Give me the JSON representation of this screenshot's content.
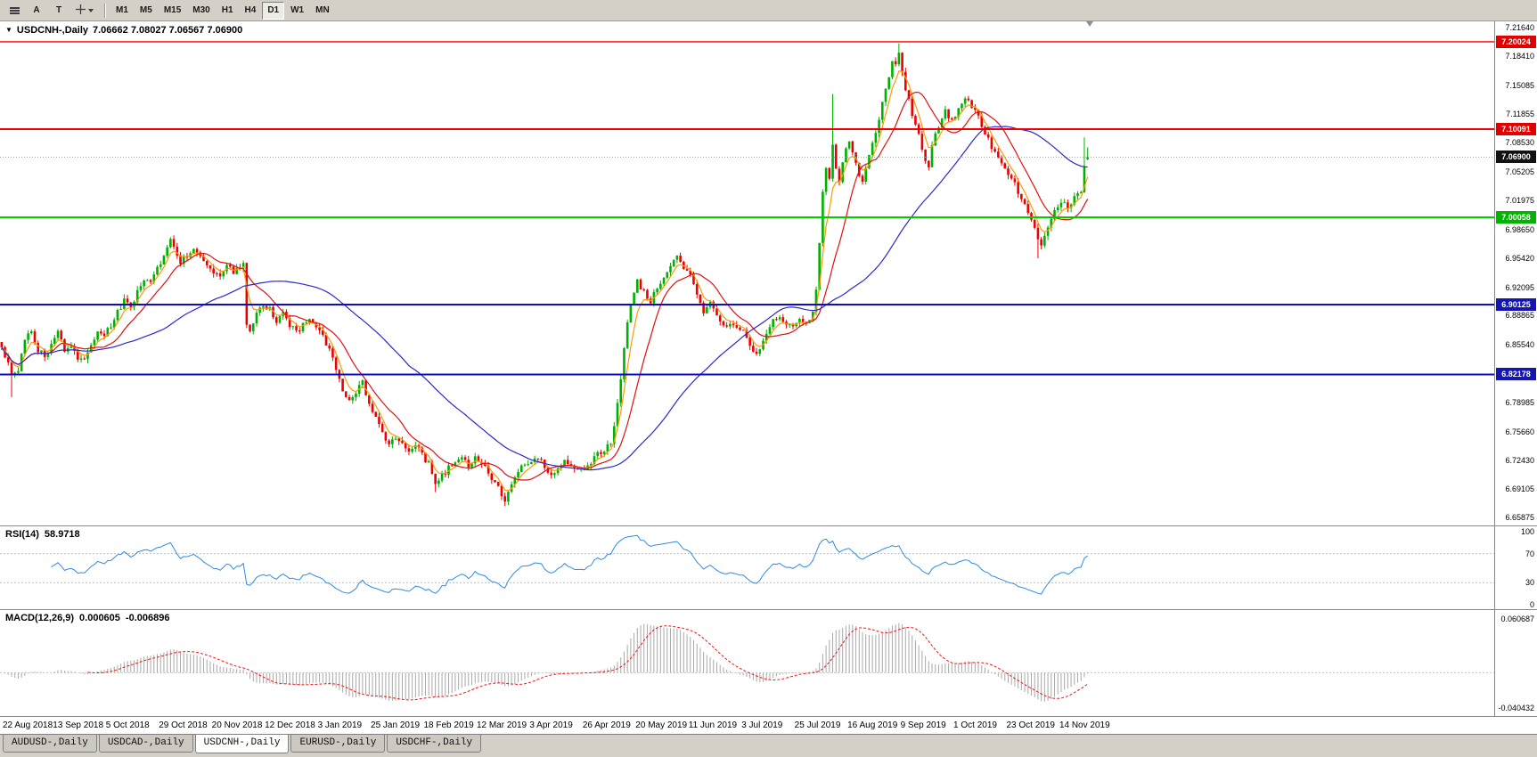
{
  "toolbar": {
    "timeframes": [
      "M1",
      "M5",
      "M15",
      "M30",
      "H1",
      "H4",
      "D1",
      "W1",
      "MN"
    ],
    "active_timeframe": "D1",
    "tools": {
      "cursor_label": "A",
      "text_label": "T"
    }
  },
  "chart": {
    "dropdown_glyph": "▼",
    "title": "USDCNH-,Daily",
    "ohlc": "7.06662 7.08027 7.06567 7.06900"
  },
  "tabs": {
    "items": [
      "AUDUSD-,Daily",
      "USDCAD-,Daily",
      "USDCNH-,Daily",
      "EURUSD-,Daily",
      "USDCHF-,Daily"
    ],
    "active": "USDCNH-,Daily"
  },
  "chart_data": {
    "type": "candlestick",
    "symbol": "USDCNH-",
    "period": "Daily",
    "ohlc_readout": {
      "open": "7.06662",
      "high": "7.08027",
      "low": "7.06567",
      "close": "7.06900"
    },
    "bar_count": 329,
    "bar_area_fraction": 0.729,
    "price_scale": {
      "top": 7.2235,
      "bottom": 6.65
    },
    "price_axis_labels": [
      "7.21640",
      "7.18410",
      "7.15085",
      "7.11855",
      "7.08530",
      "7.05205",
      "7.01975",
      "6.98650",
      "6.95420",
      "6.92095",
      "6.88865",
      "6.85540",
      "6.82215",
      "6.78985",
      "6.75660",
      "6.72430",
      "6.69105",
      "6.65875"
    ],
    "colors": {
      "up": "#00b000",
      "down": "#ee0000"
    },
    "moving_averages": [
      {
        "period": 5,
        "method": "ema",
        "color": "#ff9900"
      },
      {
        "period": 13,
        "method": "sma",
        "color": "#e01010"
      },
      {
        "period": 50,
        "method": "sma",
        "color": "#2828d0"
      }
    ],
    "hlines": [
      {
        "price": 7.20024,
        "label": "7.20024",
        "color": "#f40000",
        "badge": "#e00000",
        "width": 1.3,
        "dash": ""
      },
      {
        "price": 7.10091,
        "label": "7.10091",
        "color": "#f40000",
        "badge": "#e00000",
        "width": 2,
        "dash": ""
      },
      {
        "price": 7.069,
        "label": "7.06900",
        "color": "#a8a8a8",
        "badge": "#111111",
        "width": 1,
        "dash": "1,2"
      },
      {
        "price": 7.00058,
        "label": "7.00058",
        "color": "#00cc00",
        "badge": "#00b400",
        "width": 2,
        "dash": ""
      },
      {
        "price": 6.90125,
        "label": "6.90125",
        "color": "#0d0dc9",
        "badge": "#1515b4",
        "width": 2,
        "dash": ""
      },
      {
        "price": 6.82178,
        "label": "6.82178",
        "color": "#0d0dc9",
        "badge": "#1515b4",
        "width": 2,
        "dash": ""
      }
    ],
    "close_anchors": [
      [
        0,
        6.852
      ],
      [
        2,
        6.836
      ],
      [
        3,
        6.82
      ],
      [
        5,
        6.828
      ],
      [
        7,
        6.862
      ],
      [
        9,
        6.872
      ],
      [
        11,
        6.85
      ],
      [
        13,
        6.843
      ],
      [
        15,
        6.856
      ],
      [
        17,
        6.87
      ],
      [
        19,
        6.848
      ],
      [
        21,
        6.856
      ],
      [
        23,
        6.84
      ],
      [
        25,
        6.838
      ],
      [
        27,
        6.858
      ],
      [
        29,
        6.87
      ],
      [
        31,
        6.866
      ],
      [
        33,
        6.878
      ],
      [
        35,
        6.892
      ],
      [
        37,
        6.905
      ],
      [
        39,
        6.896
      ],
      [
        41,
        6.918
      ],
      [
        43,
        6.93
      ],
      [
        45,
        6.924
      ],
      [
        47,
        6.942
      ],
      [
        49,
        6.958
      ],
      [
        51,
        6.976
      ],
      [
        52,
        6.968
      ],
      [
        54,
        6.95
      ],
      [
        56,
        6.958
      ],
      [
        58,
        6.965
      ],
      [
        60,
        6.955
      ],
      [
        62,
        6.946
      ],
      [
        64,
        6.94
      ],
      [
        66,
        6.935
      ],
      [
        68,
        6.945
      ],
      [
        70,
        6.938
      ],
      [
        72,
        6.944
      ],
      [
        73,
        6.95
      ],
      [
        74,
        6.88
      ],
      [
        75,
        6.868
      ],
      [
        77,
        6.89
      ],
      [
        79,
        6.9
      ],
      [
        81,
        6.895
      ],
      [
        83,
        6.884
      ],
      [
        85,
        6.89
      ],
      [
        87,
        6.878
      ],
      [
        89,
        6.87
      ],
      [
        91,
        6.877
      ],
      [
        93,
        6.884
      ],
      [
        95,
        6.876
      ],
      [
        97,
        6.866
      ],
      [
        99,
        6.85
      ],
      [
        101,
        6.826
      ],
      [
        103,
        6.806
      ],
      [
        105,
        6.792
      ],
      [
        107,
        6.803
      ],
      [
        109,
        6.812
      ],
      [
        111,
        6.79
      ],
      [
        113,
        6.775
      ],
      [
        115,
        6.758
      ],
      [
        117,
        6.742
      ],
      [
        119,
        6.752
      ],
      [
        121,
        6.745
      ],
      [
        123,
        6.736
      ],
      [
        125,
        6.742
      ],
      [
        127,
        6.73
      ],
      [
        129,
        6.72
      ],
      [
        131,
        6.7
      ],
      [
        133,
        6.706
      ],
      [
        135,
        6.716
      ],
      [
        137,
        6.724
      ],
      [
        139,
        6.731
      ],
      [
        141,
        6.719
      ],
      [
        143,
        6.726
      ],
      [
        145,
        6.72
      ],
      [
        147,
        6.71
      ],
      [
        149,
        6.7
      ],
      [
        151,
        6.686
      ],
      [
        152,
        6.68
      ],
      [
        154,
        6.698
      ],
      [
        156,
        6.712
      ],
      [
        158,
        6.722
      ],
      [
        160,
        6.719
      ],
      [
        162,
        6.727
      ],
      [
        164,
        6.717
      ],
      [
        166,
        6.707
      ],
      [
        168,
        6.713
      ],
      [
        170,
        6.722
      ],
      [
        172,
        6.717
      ],
      [
        174,
        6.711
      ],
      [
        176,
        6.717
      ],
      [
        178,
        6.723
      ],
      [
        180,
        6.73
      ],
      [
        182,
        6.736
      ],
      [
        184,
        6.742
      ],
      [
        185,
        6.76
      ],
      [
        186,
        6.788
      ],
      [
        187,
        6.818
      ],
      [
        188,
        6.85
      ],
      [
        189,
        6.878
      ],
      [
        190,
        6.9
      ],
      [
        191,
        6.916
      ],
      [
        192,
        6.928
      ],
      [
        194,
        6.916
      ],
      [
        196,
        6.906
      ],
      [
        198,
        6.92
      ],
      [
        200,
        6.934
      ],
      [
        202,
        6.946
      ],
      [
        204,
        6.955
      ],
      [
        206,
        6.945
      ],
      [
        208,
        6.935
      ],
      [
        210,
        6.916
      ],
      [
        212,
        6.892
      ],
      [
        214,
        6.905
      ],
      [
        216,
        6.888
      ],
      [
        218,
        6.877
      ],
      [
        220,
        6.882
      ],
      [
        222,
        6.875
      ],
      [
        224,
        6.87
      ],
      [
        226,
        6.852
      ],
      [
        228,
        6.843
      ],
      [
        230,
        6.863
      ],
      [
        232,
        6.879
      ],
      [
        234,
        6.886
      ],
      [
        236,
        6.881
      ],
      [
        238,
        6.877
      ],
      [
        240,
        6.881
      ],
      [
        242,
        6.884
      ],
      [
        244,
        6.882
      ],
      [
        245,
        6.89
      ],
      [
        246,
        6.92
      ],
      [
        247,
        6.972
      ],
      [
        248,
        7.03
      ],
      [
        249,
        7.058
      ],
      [
        250,
        7.046
      ],
      [
        251,
        7.08
      ],
      [
        252,
        7.056
      ],
      [
        253,
        7.042
      ],
      [
        254,
        7.06
      ],
      [
        255,
        7.076
      ],
      [
        256,
        7.086
      ],
      [
        257,
        7.072
      ],
      [
        258,
        7.06
      ],
      [
        259,
        7.05
      ],
      [
        260,
        7.044
      ],
      [
        261,
        7.058
      ],
      [
        262,
        7.07
      ],
      [
        263,
        7.082
      ],
      [
        264,
        7.096
      ],
      [
        265,
        7.114
      ],
      [
        266,
        7.13
      ],
      [
        267,
        7.148
      ],
      [
        268,
        7.162
      ],
      [
        269,
        7.18
      ],
      [
        270,
        7.172
      ],
      [
        271,
        7.19
      ],
      [
        272,
        7.165
      ],
      [
        273,
        7.148
      ],
      [
        275,
        7.118
      ],
      [
        277,
        7.094
      ],
      [
        279,
        7.068
      ],
      [
        280,
        7.06
      ],
      [
        281,
        7.082
      ],
      [
        283,
        7.104
      ],
      [
        285,
        7.12
      ],
      [
        287,
        7.11
      ],
      [
        289,
        7.126
      ],
      [
        291,
        7.136
      ],
      [
        293,
        7.126
      ],
      [
        295,
        7.116
      ],
      [
        297,
        7.096
      ],
      [
        299,
        7.08
      ],
      [
        301,
        7.066
      ],
      [
        303,
        7.056
      ],
      [
        305,
        7.046
      ],
      [
        307,
        7.03
      ],
      [
        309,
        7.015
      ],
      [
        311,
        6.996
      ],
      [
        313,
        6.976
      ],
      [
        314,
        6.968
      ],
      [
        316,
        6.986
      ],
      [
        318,
        7.006
      ],
      [
        320,
        7.02
      ],
      [
        322,
        7.012
      ],
      [
        324,
        7.022
      ],
      [
        326,
        7.03
      ],
      [
        327,
        7.062
      ],
      [
        328,
        7.067
      ]
    ],
    "wick_overrides": [
      {
        "bar": 3,
        "low": 6.796
      },
      {
        "bar": 131,
        "low": 6.688
      },
      {
        "bar": 152,
        "low": 6.672
      },
      {
        "bar": 251,
        "high": 7.141
      },
      {
        "bar": 271,
        "high": 7.1985
      },
      {
        "bar": 313,
        "low": 6.954
      },
      {
        "bar": 327,
        "high": 7.0915
      }
    ],
    "last_bar_ohlc": [
      7.06662,
      7.08027,
      7.06567,
      7.069
    ],
    "rsi": {
      "name": "RSI(14)",
      "value": "58.9718",
      "period": 14,
      "color": "#2e8be6",
      "levels": [
        "100",
        "70",
        "30",
        "0"
      ],
      "level_values": [
        100,
        70,
        30,
        0
      ],
      "dashed_levels": [
        70,
        30
      ]
    },
    "macd": {
      "name": "MACD(12,26,9)",
      "value_main": "0.000605",
      "value_signal": "-0.006896",
      "fast": 12,
      "slow": 26,
      "signal": 9,
      "scale_top": 0.060687,
      "scale_bottom": -0.040432,
      "axis_labels": [
        "0.060687",
        "-0.040432"
      ],
      "hist_color": "#a8a8a8",
      "signal_color": "#f01414"
    },
    "date_axis": {
      "first_bar": 0,
      "step": 16,
      "labels": [
        "22 Aug 2018",
        "13 Sep 2018",
        "5 Oct 2018",
        "29 Oct 2018",
        "20 Nov 2018",
        "12 Dec 2018",
        "3 Jan 2019",
        "25 Jan 2019",
        "18 Feb 2019",
        "12 Mar 2019",
        "3 Apr 2019",
        "26 Apr 2019",
        "20 May 2019",
        "11 Jun 2019",
        "3 Jul 2019",
        "25 Jul 2019",
        "16 Aug 2019",
        "9 Sep 2019",
        "1 Oct 2019",
        "23 Oct 2019",
        "14 Nov 2019"
      ]
    }
  }
}
